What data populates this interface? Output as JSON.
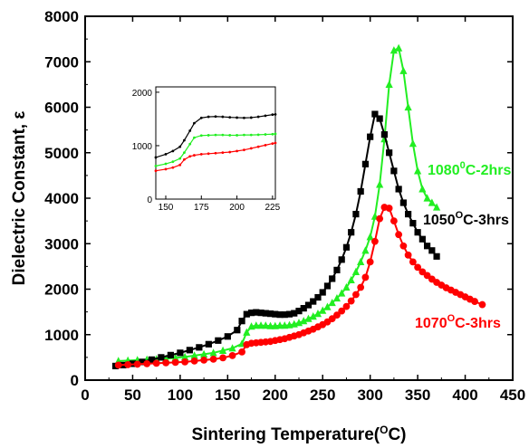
{
  "chart_data": {
    "type": "line",
    "xlabel": {
      "text": "Sintering Temperature(",
      "sup": "O",
      "tail": "C)"
    },
    "ylabel": "Dielectric Constant, ε",
    "xlim": [
      0,
      450
    ],
    "ylim": [
      0,
      8000
    ],
    "xticks": [
      0,
      50,
      100,
      150,
      200,
      250,
      300,
      350,
      400,
      450
    ],
    "yticks": [
      0,
      1000,
      2000,
      3000,
      4000,
      5000,
      6000,
      7000,
      8000
    ],
    "grid": false,
    "series": [
      {
        "name": {
          "pre": "1050",
          "sup": "O",
          "post": "C-3hrs"
        },
        "color": "#000000",
        "marker": "square",
        "x": [
          32,
          40,
          50,
          60,
          70,
          80,
          90,
          100,
          110,
          120,
          130,
          140,
          150,
          160,
          165,
          170,
          175,
          180,
          185,
          190,
          195,
          200,
          205,
          210,
          215,
          220,
          225,
          230,
          235,
          240,
          245,
          250,
          255,
          260,
          265,
          270,
          275,
          280,
          285,
          290,
          295,
          300,
          305,
          310,
          315,
          320,
          325,
          330,
          335,
          340,
          345,
          350,
          355,
          360,
          365,
          370
        ],
        "y": [
          310,
          330,
          360,
          400,
          450,
          500,
          550,
          600,
          660,
          720,
          790,
          870,
          960,
          1100,
          1300,
          1450,
          1480,
          1490,
          1480,
          1470,
          1460,
          1450,
          1440,
          1440,
          1450,
          1470,
          1520,
          1580,
          1650,
          1730,
          1820,
          1930,
          2070,
          2230,
          2420,
          2650,
          2920,
          3250,
          3650,
          4150,
          4750,
          5350,
          5850,
          5750,
          5400,
          5000,
          4600,
          4200,
          3900,
          3650,
          3450,
          3250,
          3100,
          2950,
          2850,
          2720
        ]
      },
      {
        "name": {
          "pre": "1080",
          "sup": "0",
          "post": "C-2hrs"
        },
        "color": "#22ee22",
        "marker": "triangle",
        "x": [
          35,
          45,
          55,
          65,
          75,
          85,
          95,
          105,
          115,
          125,
          135,
          145,
          155,
          165,
          170,
          175,
          180,
          185,
          190,
          195,
          200,
          205,
          210,
          215,
          220,
          225,
          230,
          235,
          240,
          245,
          250,
          255,
          260,
          265,
          270,
          275,
          280,
          285,
          290,
          295,
          300,
          305,
          310,
          315,
          320,
          325,
          330,
          335,
          340,
          345,
          350,
          355,
          360,
          365,
          370
        ],
        "y": [
          420,
          430,
          440,
          450,
          460,
          470,
          490,
          510,
          540,
          570,
          600,
          650,
          700,
          800,
          1050,
          1180,
          1200,
          1200,
          1200,
          1190,
          1190,
          1200,
          1200,
          1210,
          1230,
          1260,
          1300,
          1350,
          1400,
          1460,
          1530,
          1610,
          1700,
          1800,
          1910,
          2040,
          2200,
          2380,
          2600,
          2850,
          3150,
          3600,
          4300,
          5300,
          6500,
          7250,
          7300,
          6800,
          6000,
          5200,
          4600,
          4200,
          4000,
          3900,
          3800
        ]
      },
      {
        "name": {
          "pre": "1070",
          "sup": "O",
          "post": "C-3hrs"
        },
        "color": "#ff0000",
        "marker": "circle",
        "x": [
          35,
          45,
          55,
          65,
          75,
          85,
          95,
          105,
          115,
          125,
          135,
          145,
          155,
          165,
          170,
          175,
          180,
          185,
          190,
          195,
          200,
          205,
          210,
          215,
          220,
          225,
          230,
          235,
          240,
          245,
          250,
          255,
          260,
          265,
          270,
          275,
          280,
          285,
          290,
          295,
          300,
          305,
          310,
          315,
          320,
          325,
          330,
          335,
          340,
          345,
          350,
          355,
          360,
          365,
          370,
          375,
          380,
          385,
          390,
          395,
          400,
          405,
          410,
          418
        ],
        "y": [
          330,
          340,
          350,
          360,
          370,
          380,
          390,
          400,
          420,
          440,
          460,
          490,
          540,
          620,
          780,
          810,
          820,
          830,
          840,
          850,
          870,
          890,
          910,
          940,
          970,
          1000,
          1040,
          1080,
          1120,
          1170,
          1220,
          1280,
          1350,
          1430,
          1520,
          1620,
          1740,
          1880,
          2040,
          2260,
          2600,
          3050,
          3550,
          3800,
          3780,
          3500,
          3200,
          2950,
          2750,
          2600,
          2480,
          2380,
          2300,
          2220,
          2150,
          2090,
          2030,
          1980,
          1930,
          1880,
          1830,
          1780,
          1730,
          1660
        ]
      }
    ],
    "inset": {
      "xlim": [
        143,
        227
      ],
      "ylim": [
        0,
        2100
      ],
      "xticks": [
        150,
        175,
        200,
        225
      ],
      "yticks": [
        0,
        1000,
        2000
      ],
      "series": [
        {
          "color": "#000000",
          "x": [
            143,
            150,
            155,
            160,
            163,
            167,
            170,
            175,
            180,
            185,
            190,
            195,
            200,
            205,
            210,
            215,
            220,
            225,
            227
          ],
          "y": [
            780,
            840,
            900,
            980,
            1100,
            1280,
            1420,
            1520,
            1540,
            1545,
            1540,
            1530,
            1525,
            1520,
            1525,
            1540,
            1560,
            1580,
            1585
          ]
        },
        {
          "color": "#22ee22",
          "x": [
            143,
            150,
            155,
            160,
            163,
            167,
            170,
            175,
            180,
            185,
            190,
            195,
            200,
            205,
            210,
            215,
            220,
            225,
            227
          ],
          "y": [
            620,
            660,
            700,
            760,
            870,
            1030,
            1150,
            1190,
            1195,
            1200,
            1200,
            1195,
            1195,
            1200,
            1200,
            1205,
            1210,
            1215,
            1220
          ]
        },
        {
          "color": "#ff0000",
          "x": [
            143,
            150,
            155,
            160,
            163,
            167,
            170,
            175,
            180,
            185,
            190,
            195,
            200,
            205,
            210,
            215,
            220,
            225,
            227
          ],
          "y": [
            530,
            560,
            590,
            640,
            740,
            800,
            820,
            840,
            850,
            860,
            870,
            880,
            900,
            920,
            950,
            980,
            1010,
            1040,
            1050
          ]
        }
      ]
    }
  }
}
